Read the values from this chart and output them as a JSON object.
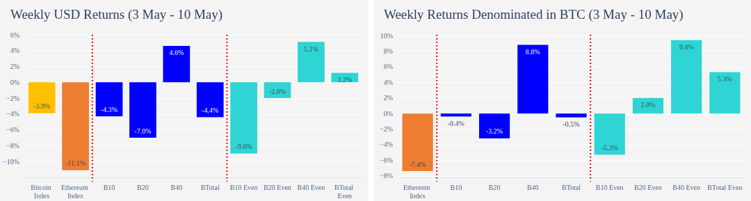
{
  "chart_data": [
    {
      "type": "bar",
      "title": "Weekly USD Returns (3 May - 10 May)",
      "categories": [
        "Bitcoin Index",
        "Ethereum Index",
        "B10",
        "B20",
        "B40",
        "BTotal",
        "B10 Even",
        "B20 Even",
        "B40 Even",
        "BTotal Even"
      ],
      "values": [
        -3.9,
        -11.1,
        -4.3,
        -7.0,
        4.6,
        -4.4,
        -9.0,
        -2.0,
        5.1,
        1.2
      ],
      "value_labels": [
        "-3.9%",
        "-11.1%",
        "-4.3%",
        "-7.0%",
        "4.6%",
        "-4.4%",
        "-9.0%",
        "-2.0%",
        "5.1%",
        "1.2%"
      ],
      "colors": [
        "#ffc000",
        "#ed7d31",
        "#0000ff",
        "#0000ff",
        "#0000ff",
        "#0000ff",
        "#2ed5d4",
        "#2ed5d4",
        "#2ed5d4",
        "#2ed5d4"
      ],
      "ylim": [
        -12,
        6
      ],
      "yticks": [
        {
          "value": -10,
          "label": "−10%"
        },
        {
          "value": -8,
          "label": "−8%"
        },
        {
          "value": -6,
          "label": "−6%"
        },
        {
          "value": -4,
          "label": "−4%"
        },
        {
          "value": -2,
          "label": "−2%"
        },
        {
          "value": 0,
          "label": "0%"
        },
        {
          "value": 2,
          "label": "2%"
        },
        {
          "value": 4,
          "label": "4%"
        },
        {
          "value": 6,
          "label": "6%"
        }
      ],
      "grid": "y"
    },
    {
      "type": "bar",
      "title": "Weekly Returns Denominated in BTC (3 May - 10 May)",
      "categories": [
        "Ethereum Index",
        "B10",
        "B20",
        "B40",
        "BTotal",
        "B10 Even",
        "B20 Even",
        "B40 Even",
        "BTotal Even"
      ],
      "values": [
        -7.4,
        -0.4,
        -3.2,
        8.8,
        -0.5,
        -5.3,
        2.0,
        9.4,
        5.3
      ],
      "value_labels": [
        "-7.4%",
        "-0.4%",
        "-3.2%",
        "8.8%",
        "-0.5%",
        "-5.3%",
        "2.0%",
        "9.4%",
        "5.3%"
      ],
      "colors": [
        "#ed7d31",
        "#0000ff",
        "#0000ff",
        "#0000ff",
        "#0000ff",
        "#2ed5d4",
        "#2ed5d4",
        "#2ed5d4",
        "#2ed5d4"
      ],
      "ylim": [
        -8.2,
        10.1
      ],
      "yticks": [
        {
          "value": -8,
          "label": "−8%"
        },
        {
          "value": -6,
          "label": "−6%"
        },
        {
          "value": -4,
          "label": "−4%"
        },
        {
          "value": -2,
          "label": "−2%"
        },
        {
          "value": 0,
          "label": "0%"
        },
        {
          "value": 2,
          "label": "2%"
        },
        {
          "value": 4,
          "label": "4%"
        },
        {
          "value": 6,
          "label": "6%"
        },
        {
          "value": 8,
          "label": "8%"
        },
        {
          "value": 10,
          "label": "10%"
        }
      ],
      "grid": "y"
    }
  ]
}
